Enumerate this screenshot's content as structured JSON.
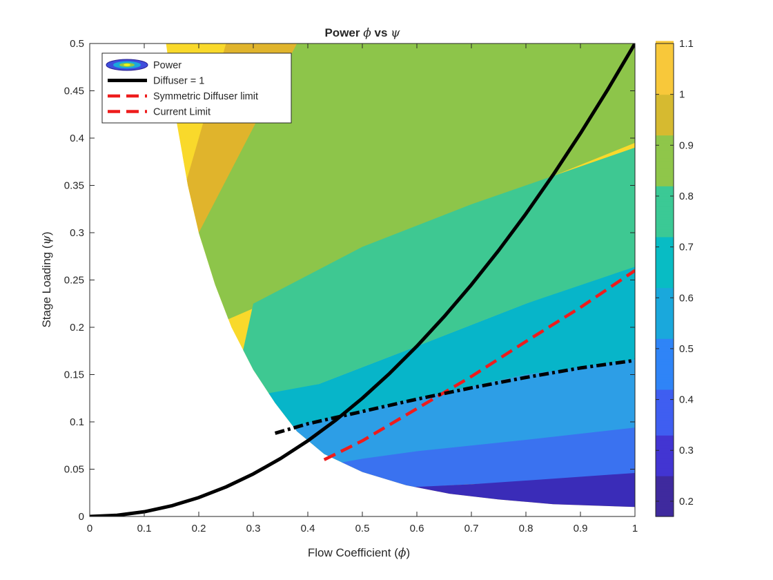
{
  "chart_data": {
    "type": "contourf",
    "title_prefix": "Power ",
    "title_phi": "ϕ",
    "title_mid": " vs ",
    "title_psi": "ψ",
    "xlabel_text": "Flow Coefficient (",
    "xlabel_sym": "ϕ",
    "xlabel_close": ")",
    "ylabel_text": "Stage Loading (",
    "ylabel_sym": "ψ",
    "ylabel_close": ")",
    "xlim": [
      0,
      1
    ],
    "ylim": [
      0,
      0.5
    ],
    "xticks": [
      "0",
      "0.1",
      "0.2",
      "0.3",
      "0.4",
      "0.5",
      "0.6",
      "0.7",
      "0.8",
      "0.9",
      "1"
    ],
    "yticks": [
      "0",
      "0.05",
      "0.1",
      "0.15",
      "0.2",
      "0.25",
      "0.3",
      "0.35",
      "0.4",
      "0.45",
      "0.5"
    ],
    "colorbar": {
      "clim": [
        0.17,
        1.1
      ],
      "ticks": [
        "0.2",
        "0.3",
        "0.4",
        "0.5",
        "0.6",
        "0.7",
        "0.8",
        "0.9",
        "1",
        "1.1"
      ]
    },
    "legend": {
      "location": "top-left",
      "entries": [
        "Power",
        "Diffuser = 1",
        "Symmetric Diffuser limit",
        "Current Limit"
      ]
    },
    "contour_bands": [
      {
        "level": 1.0,
        "color": "#f9d92b"
      },
      {
        "level": 0.9,
        "color": "#e0b42c"
      },
      {
        "level": 0.8,
        "color": "#8dc54a"
      },
      {
        "level": 0.7,
        "color": "#3ec892"
      },
      {
        "level": 0.6,
        "color": "#07b5c9"
      },
      {
        "level": 0.5,
        "color": "#2d9ee6"
      },
      {
        "level": 0.4,
        "color": "#3a72f0"
      },
      {
        "level": 0.3,
        "color": "#3f4ddc"
      },
      {
        "level": 0.2,
        "color": "#3a2cb8"
      }
    ],
    "series": [
      {
        "name": "Diffuser = 1",
        "style": "solid",
        "color": "#000000",
        "x": [
          0,
          0.05,
          0.1,
          0.15,
          0.2,
          0.25,
          0.3,
          0.35,
          0.4,
          0.45,
          0.5,
          0.55,
          0.6,
          0.65,
          0.7,
          0.75,
          0.8,
          0.85,
          0.9,
          0.95,
          1.0
        ],
        "y": [
          0,
          0.00125,
          0.005,
          0.01125,
          0.02,
          0.03125,
          0.045,
          0.06125,
          0.08,
          0.10125,
          0.125,
          0.15125,
          0.18,
          0.21125,
          0.245,
          0.28125,
          0.32,
          0.36125,
          0.405,
          0.45125,
          0.5
        ]
      },
      {
        "name": "Symmetric Diffuser limit",
        "style": "dashed",
        "color": "#ee1c1c",
        "x": [
          0.43,
          0.5,
          0.6,
          0.7,
          0.8,
          0.9,
          1.0
        ],
        "y": [
          0.06,
          0.08,
          0.114,
          0.148,
          0.185,
          0.221,
          0.26
        ]
      },
      {
        "name": "Current Limit",
        "style": "dashed",
        "color": "#ee1c1c",
        "x": [
          0.43,
          0.5,
          0.6,
          0.7,
          0.8,
          0.9,
          1.0
        ],
        "y": [
          0.06,
          0.08,
          0.114,
          0.148,
          0.185,
          0.221,
          0.26
        ]
      },
      {
        "name": "",
        "style": "dash-dot",
        "color": "#000000",
        "x": [
          0.34,
          0.4,
          0.5,
          0.6,
          0.7,
          0.8,
          0.9,
          1.0
        ],
        "y": [
          0.088,
          0.098,
          0.111,
          0.124,
          0.136,
          0.147,
          0.157,
          0.165
        ]
      }
    ]
  }
}
